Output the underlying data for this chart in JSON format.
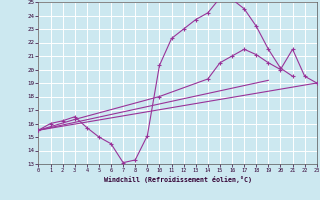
{
  "xlabel": "Windchill (Refroidissement éolien,°C)",
  "bg_color": "#cce8f0",
  "grid_color": "#ffffff",
  "line_color": "#993399",
  "xmin": 0,
  "xmax": 23,
  "ymin": 13,
  "ymax": 25,
  "line1_x": [
    0,
    1,
    2,
    3,
    4,
    5,
    6,
    7,
    8,
    9,
    10,
    11,
    12,
    13,
    14,
    15,
    16,
    17,
    18,
    19,
    20,
    21
  ],
  "line1_y": [
    15.5,
    16.0,
    16.2,
    16.5,
    15.7,
    15.0,
    14.5,
    13.1,
    13.3,
    15.1,
    20.3,
    22.3,
    23.0,
    23.7,
    24.2,
    25.3,
    25.2,
    24.5,
    23.2,
    21.5,
    20.1,
    19.5
  ],
  "line2_x": [
    0,
    3,
    10,
    14,
    15,
    16,
    17,
    18,
    19,
    20,
    21,
    22,
    23
  ],
  "line2_y": [
    15.5,
    16.3,
    18.0,
    19.3,
    20.5,
    21.0,
    21.5,
    21.1,
    20.5,
    20.0,
    21.5,
    19.5,
    19.0
  ],
  "line3_x": [
    0,
    19
  ],
  "line3_y": [
    15.5,
    19.2
  ],
  "line4_x": [
    0,
    23
  ],
  "line4_y": [
    15.5,
    19.0
  ]
}
